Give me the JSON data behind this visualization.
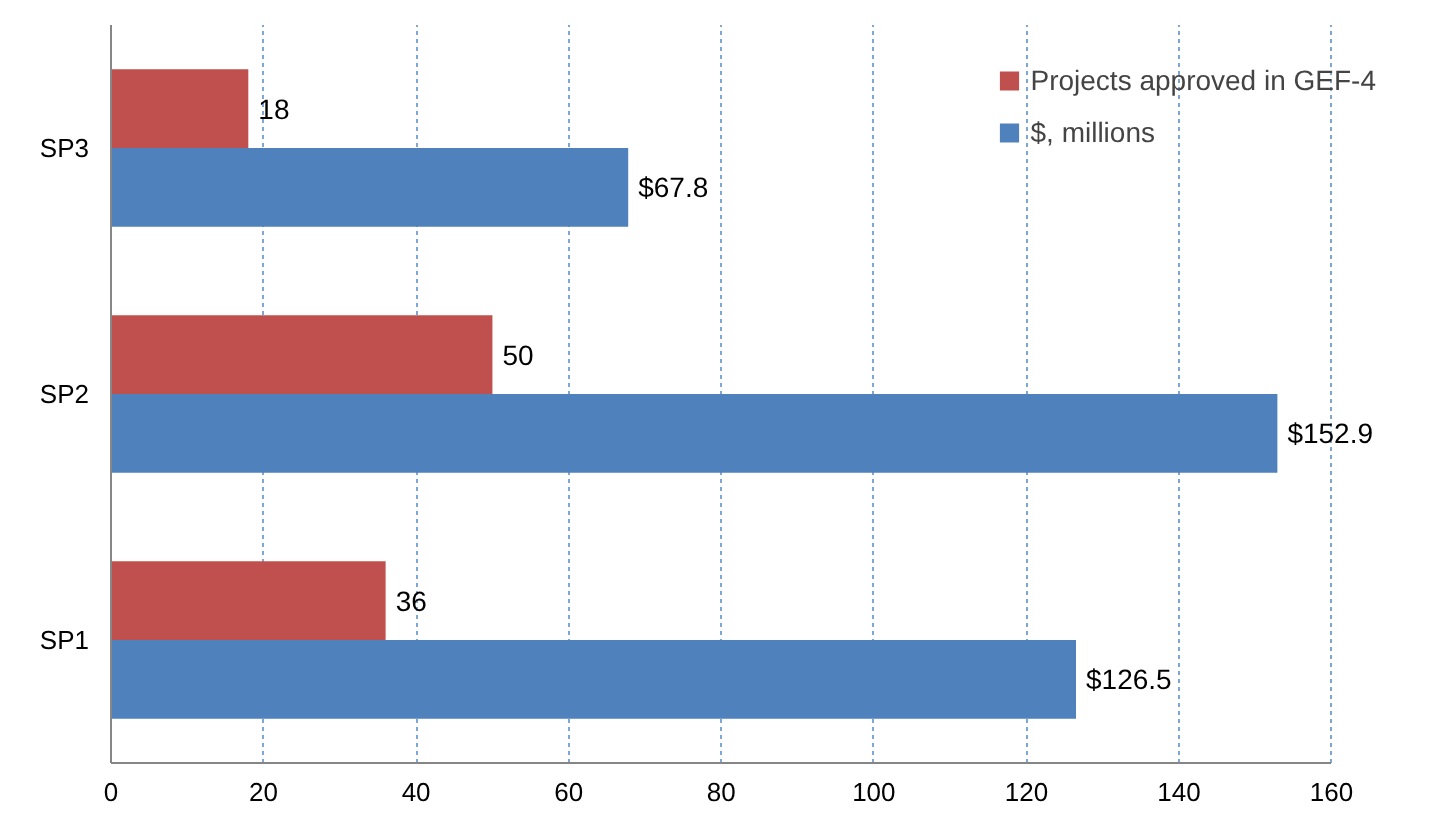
{
  "chart_data": {
    "type": "bar",
    "orientation": "horizontal",
    "categories": [
      "SP3",
      "SP2",
      "SP1"
    ],
    "series": [
      {
        "name": "Projects approved in GEF-4",
        "color": "#c0504d",
        "values": [
          18,
          50,
          36
        ],
        "value_labels": [
          "18",
          "50",
          "36"
        ]
      },
      {
        "name": "$, millions",
        "color": "#4f81bd",
        "values": [
          67.8,
          152.9,
          126.5
        ],
        "value_labels": [
          "$67.8",
          "$152.9",
          "$126.5"
        ]
      }
    ],
    "xlim": [
      0,
      160
    ],
    "xticks": [
      0,
      20,
      40,
      60,
      80,
      100,
      120,
      140,
      160
    ],
    "grid": "x",
    "legend": "top right"
  }
}
